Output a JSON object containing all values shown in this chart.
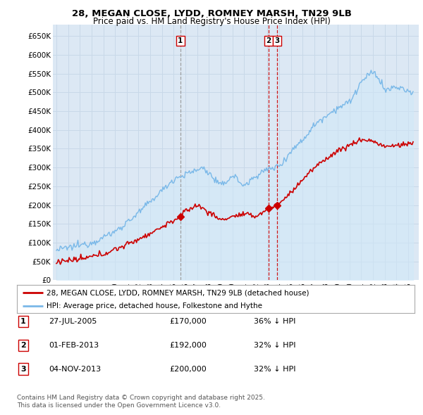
{
  "title1": "28, MEGAN CLOSE, LYDD, ROMNEY MARSH, TN29 9LB",
  "title2": "Price paid vs. HM Land Registry's House Price Index (HPI)",
  "ylim": [
    0,
    680000
  ],
  "yticks": [
    0,
    50000,
    100000,
    150000,
    200000,
    250000,
    300000,
    350000,
    400000,
    450000,
    500000,
    550000,
    600000,
    650000
  ],
  "ytick_labels": [
    "£0",
    "£50K",
    "£100K",
    "£150K",
    "£200K",
    "£250K",
    "£300K",
    "£350K",
    "£400K",
    "£450K",
    "£500K",
    "£550K",
    "£600K",
    "£650K"
  ],
  "hpi_color": "#7ab8e8",
  "hpi_fill_color": "#d0e8f8",
  "sale_color": "#cc0000",
  "grid_color": "#c8d8e8",
  "bg_color": "#ffffff",
  "chart_bg_color": "#dce8f4",
  "vline1_color": "#999999",
  "vline23_color": "#cc0000",
  "legend_label1": "28, MEGAN CLOSE, LYDD, ROMNEY MARSH, TN29 9LB (detached house)",
  "legend_label2": "HPI: Average price, detached house, Folkestone and Hythe",
  "transactions": [
    {
      "id": 1,
      "date_num": 2005.57,
      "price": 170000,
      "label": "1"
    },
    {
      "id": 2,
      "date_num": 2013.08,
      "price": 192000,
      "label": "2"
    },
    {
      "id": 3,
      "date_num": 2013.84,
      "price": 200000,
      "label": "3"
    }
  ],
  "table_rows": [
    {
      "num": "1",
      "date": "27-JUL-2005",
      "price": "£170,000",
      "info": "36% ↓ HPI"
    },
    {
      "num": "2",
      "date": "01-FEB-2013",
      "price": "£192,000",
      "info": "32% ↓ HPI"
    },
    {
      "num": "3",
      "date": "04-NOV-2013",
      "price": "£200,000",
      "info": "32% ↓ HPI"
    }
  ],
  "footer1": "Contains HM Land Registry data © Crown copyright and database right 2025.",
  "footer2": "This data is licensed under the Open Government Licence v3.0."
}
